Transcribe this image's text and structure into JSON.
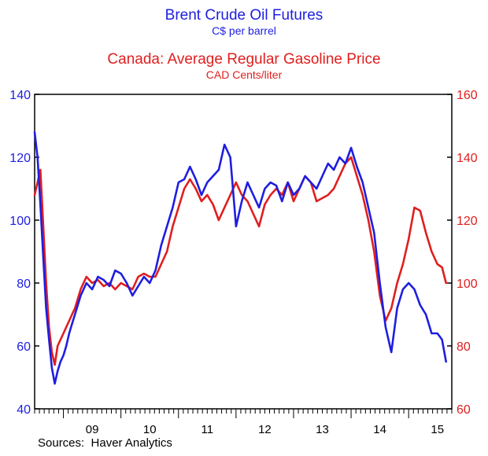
{
  "chart_data": {
    "type": "line",
    "title": "Brent Crude Oil Futures",
    "subtitle": "C$ per barrel",
    "title2": "Canada: Average Regular Gasoline Price",
    "subtitle2": "CAD Cents/liter",
    "source": "Sources:  Haver Analytics",
    "x_range": [
      2008.5,
      2015.75
    ],
    "x_tick_labels": [
      {
        "label": "09",
        "x": 2009
      },
      {
        "label": "10",
        "x": 2010
      },
      {
        "label": "11",
        "x": 2011
      },
      {
        "label": "12",
        "x": 2012
      },
      {
        "label": "13",
        "x": 2013
      },
      {
        "label": "14",
        "x": 2014
      },
      {
        "label": "15",
        "x": 2015
      }
    ],
    "y_left": {
      "range": [
        40,
        140
      ],
      "ticks": [
        40,
        60,
        80,
        100,
        120,
        140
      ],
      "color": "#1e1ee0"
    },
    "y_right": {
      "range": [
        60,
        160
      ],
      "ticks": [
        60,
        80,
        100,
        120,
        140,
        160
      ],
      "color": "#e01e1e"
    },
    "grid": false,
    "series": [
      {
        "name": "Brent Crude Oil Futures",
        "axis": "left",
        "color": "#1e1ee0",
        "x": [
          2008.5,
          2008.55,
          2008.6,
          2008.65,
          2008.7,
          2008.75,
          2008.8,
          2008.85,
          2008.9,
          2008.95,
          2009.0,
          2009.05,
          2009.1,
          2009.15,
          2009.2,
          2009.3,
          2009.4,
          2009.5,
          2009.6,
          2009.7,
          2009.8,
          2009.9,
          2010.0,
          2010.1,
          2010.2,
          2010.3,
          2010.4,
          2010.5,
          2010.6,
          2010.7,
          2010.8,
          2010.9,
          2011.0,
          2011.1,
          2011.2,
          2011.3,
          2011.4,
          2011.5,
          2011.6,
          2011.7,
          2011.8,
          2011.9,
          2012.0,
          2012.1,
          2012.2,
          2012.3,
          2012.4,
          2012.5,
          2012.6,
          2012.7,
          2012.8,
          2012.9,
          2013.0,
          2013.1,
          2013.2,
          2013.3,
          2013.4,
          2013.5,
          2013.6,
          2013.7,
          2013.8,
          2013.9,
          2014.0,
          2014.1,
          2014.2,
          2014.3,
          2014.4,
          2014.5,
          2014.6,
          2014.7,
          2014.8,
          2014.9,
          2015.0,
          2015.1,
          2015.2,
          2015.3,
          2015.4,
          2015.5,
          2015.58,
          2015.65
        ],
        "y": [
          128,
          120,
          105,
          88,
          72,
          62,
          53,
          48,
          52,
          55,
          57,
          60,
          64,
          67,
          70,
          76,
          80,
          78,
          82,
          81,
          79,
          84,
          83,
          80,
          76,
          79,
          82,
          80,
          84,
          92,
          98,
          104,
          112,
          113,
          117,
          113,
          108,
          112,
          114,
          116,
          124,
          120,
          98,
          106,
          112,
          108,
          104,
          110,
          112,
          111,
          106,
          112,
          108,
          110,
          114,
          112,
          110,
          114,
          118,
          116,
          120,
          118,
          123,
          117,
          112,
          104,
          96,
          80,
          66,
          58,
          72,
          78,
          80,
          78,
          73,
          70,
          64,
          64,
          62,
          55
        ]
      },
      {
        "name": "Canada: Average Regular Gasoline Price",
        "axis": "right",
        "color": "#e01e1e",
        "x": [
          2008.5,
          2008.55,
          2008.6,
          2008.65,
          2008.7,
          2008.75,
          2008.8,
          2008.85,
          2008.9,
          2008.95,
          2009.0,
          2009.05,
          2009.1,
          2009.15,
          2009.2,
          2009.3,
          2009.4,
          2009.5,
          2009.6,
          2009.7,
          2009.8,
          2009.9,
          2010.0,
          2010.1,
          2010.2,
          2010.3,
          2010.4,
          2010.5,
          2010.6,
          2010.7,
          2010.8,
          2010.9,
          2011.0,
          2011.1,
          2011.2,
          2011.3,
          2011.4,
          2011.5,
          2011.6,
          2011.7,
          2011.8,
          2011.9,
          2012.0,
          2012.1,
          2012.2,
          2012.3,
          2012.4,
          2012.5,
          2012.6,
          2012.7,
          2012.8,
          2012.9,
          2013.0,
          2013.1,
          2013.2,
          2013.3,
          2013.4,
          2013.5,
          2013.6,
          2013.7,
          2013.8,
          2013.9,
          2014.0,
          2014.1,
          2014.2,
          2014.3,
          2014.4,
          2014.5,
          2014.6,
          2014.7,
          2014.8,
          2014.9,
          2015.0,
          2015.1,
          2015.2,
          2015.3,
          2015.4,
          2015.5,
          2015.58,
          2015.65
        ],
        "y": [
          128,
          132,
          136,
          118,
          100,
          86,
          78,
          74,
          80,
          82,
          84,
          86,
          88,
          90,
          92,
          98,
          102,
          100,
          101,
          99,
          100,
          98,
          100,
          99,
          98,
          102,
          103,
          102,
          102,
          106,
          110,
          118,
          124,
          130,
          133,
          130,
          126,
          128,
          125,
          120,
          124,
          128,
          132,
          128,
          126,
          122,
          118,
          125,
          128,
          130,
          128,
          132,
          126,
          130,
          134,
          132,
          126,
          127,
          128,
          130,
          134,
          138,
          140,
          134,
          128,
          120,
          110,
          96,
          88,
          92,
          100,
          106,
          114,
          124,
          123,
          116,
          110,
          106,
          105,
          100
        ]
      }
    ]
  }
}
